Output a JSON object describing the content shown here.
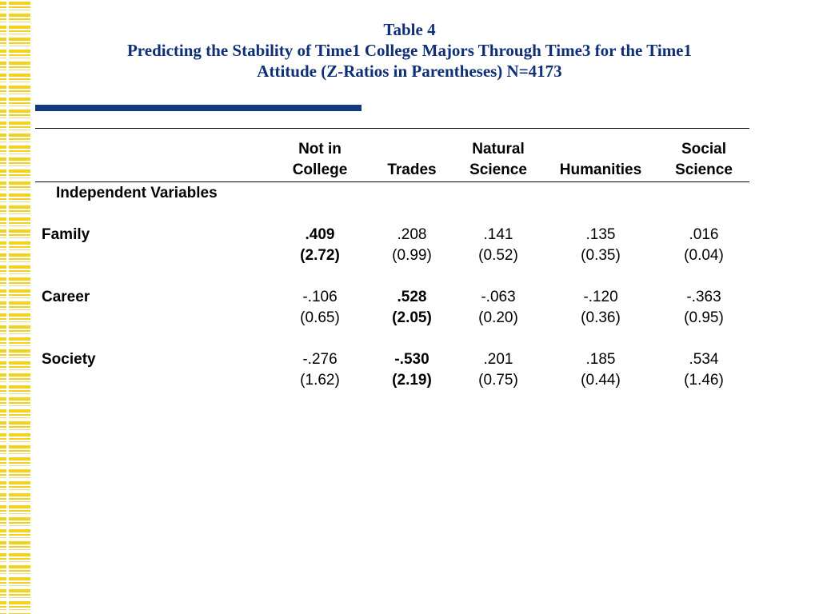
{
  "title": {
    "line1": "Table 4",
    "line2": "Predicting the Stability of Time1 College Majors Through Time3 for the Time1",
    "line3": "Attitude (Z-Ratios in Parentheses) N=4173"
  },
  "columns": [
    {
      "line1": "Not in",
      "line2": "College"
    },
    {
      "line1": "",
      "line2": "Trades"
    },
    {
      "line1": "Natural",
      "line2": "Science"
    },
    {
      "line1": "",
      "line2": "Humanities"
    },
    {
      "line1": "Social",
      "line2": "Science"
    }
  ],
  "section_label": "Independent Variables",
  "rows": [
    {
      "label": "Family",
      "coef": [
        ".409",
        ".208",
        ".141",
        ".135",
        ".016"
      ],
      "z": [
        "(2.72)",
        "(0.99)",
        "(0.52)",
        "(0.35)",
        "(0.04)"
      ]
    },
    {
      "label": "Career",
      "coef": [
        "-.106",
        ".528",
        "-.063",
        "-.120",
        "-.363"
      ],
      "z": [
        "(0.65)",
        "(2.05)",
        "(0.20)",
        "(0.36)",
        "(0.95)"
      ]
    },
    {
      "label": "Society",
      "coef": [
        "-.276",
        "-.530",
        ".201",
        ".185",
        ".534"
      ],
      "z": [
        "(1.62)",
        "(2.19)",
        "(0.75)",
        "(0.44)",
        "(1.46)"
      ]
    }
  ],
  "colors": {
    "title": "#0f2f77",
    "accent_bar": "#123a7c",
    "stripe": "#f2d21e"
  }
}
